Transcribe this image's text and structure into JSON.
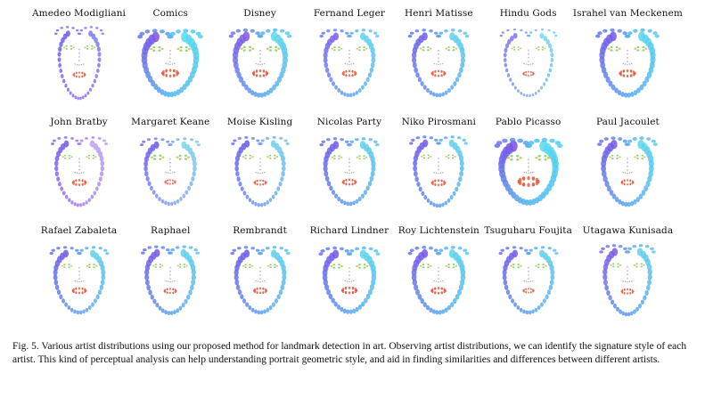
{
  "figure": {
    "artists": [
      {
        "name": "Amedeo Modigliani",
        "style": {
          "w": 0.82,
          "h": 1.1,
          "sz": 0.8,
          "eyeSz": 1.0,
          "mouth": 0.9,
          "cols": [
            "#6a5cf0",
            "#8f6df2",
            "#7c7ef0"
          ],
          "rot": 0
        }
      },
      {
        "name": "Comics",
        "style": {
          "w": 1.06,
          "h": 0.98,
          "sz": 1.35,
          "eyeSz": 1.2,
          "mouth": 1.2,
          "cols": [
            "#7a52e8",
            "#4fb6ee",
            "#58d8ee"
          ],
          "rot": 0
        }
      },
      {
        "name": "Disney",
        "style": {
          "w": 1.02,
          "h": 1.0,
          "sz": 1.25,
          "eyeSz": 1.2,
          "mouth": 1.1,
          "cols": [
            "#8055ea",
            "#5aa6ef",
            "#5fd6ec"
          ],
          "rot": 0
        }
      },
      {
        "name": "Fernand Leger",
        "style": {
          "w": 0.98,
          "h": 1.0,
          "sz": 1.0,
          "eyeSz": 1.0,
          "mouth": 1.0,
          "cols": [
            "#7b5cee",
            "#5fa4ef",
            "#60d3ea"
          ],
          "rot": 0
        }
      },
      {
        "name": "Henri Matisse",
        "style": {
          "w": 1.0,
          "h": 1.0,
          "sz": 1.05,
          "eyeSz": 1.05,
          "mouth": 1.0,
          "cols": [
            "#6f5de9",
            "#5b9ff0",
            "#5fd2ea"
          ],
          "rot": 0
        }
      },
      {
        "name": "Hindu Gods",
        "style": {
          "w": 0.96,
          "h": 1.02,
          "sz": 0.75,
          "eyeSz": 0.9,
          "mouth": 0.8,
          "cols": [
            "#7f6df0",
            "#7aa8f0",
            "#72d8ec"
          ],
          "rot": 0
        }
      },
      {
        "name": "Israhel van Meckenem",
        "style": {
          "w": 1.04,
          "h": 1.0,
          "sz": 1.25,
          "eyeSz": 1.15,
          "mouth": 1.15,
          "cols": [
            "#7455ea",
            "#54a8ef",
            "#58d4ec"
          ],
          "rot": 0
        }
      },
      {
        "name": "John Bratby",
        "style": {
          "w": 0.94,
          "h": 1.04,
          "sz": 0.9,
          "eyeSz": 0.95,
          "mouth": 1.0,
          "cols": [
            "#7258ea",
            "#a57bf0",
            "#b9a2f4"
          ],
          "rot": 0
        }
      },
      {
        "name": "Margaret Keane",
        "style": {
          "w": 1.0,
          "h": 1.0,
          "sz": 0.95,
          "eyeSz": 1.2,
          "mouth": 0.8,
          "cols": [
            "#6a58ea",
            "#7fa2f0",
            "#80d3ea"
          ],
          "rot": 0
        }
      },
      {
        "name": "Moise Kisling",
        "style": {
          "w": 0.96,
          "h": 1.04,
          "sz": 0.95,
          "eyeSz": 1.0,
          "mouth": 0.9,
          "cols": [
            "#6c58ea",
            "#6b9bf0",
            "#6fd0ea"
          ],
          "rot": 0
        }
      },
      {
        "name": "Nicolas Party",
        "style": {
          "w": 0.98,
          "h": 1.0,
          "sz": 1.05,
          "eyeSz": 1.0,
          "mouth": 1.0,
          "cols": [
            "#7058ea",
            "#5c9ff0",
            "#5fd0ea"
          ],
          "rot": 0
        }
      },
      {
        "name": "Niko Pirosmani",
        "style": {
          "w": 0.96,
          "h": 1.06,
          "sz": 1.0,
          "eyeSz": 0.95,
          "mouth": 1.0,
          "cols": [
            "#6e57ea",
            "#5c9ef0",
            "#5fd1ea"
          ],
          "rot": 0
        }
      },
      {
        "name": "Pablo Picasso",
        "style": {
          "w": 1.1,
          "h": 0.96,
          "sz": 1.5,
          "eyeSz": 1.3,
          "mouth": 1.5,
          "cols": [
            "#7a4fe6",
            "#4fb5ee",
            "#58d9ee"
          ],
          "rot": 0
        }
      },
      {
        "name": "Paul Jacoulet",
        "style": {
          "w": 0.98,
          "h": 1.02,
          "sz": 1.2,
          "eyeSz": 1.05,
          "mouth": 0.9,
          "cols": [
            "#7357ea",
            "#58a9ef",
            "#5bd6ec"
          ],
          "rot": 0
        }
      },
      {
        "name": "Rafael Zabaleta",
        "style": {
          "w": 0.98,
          "h": 1.0,
          "sz": 1.0,
          "eyeSz": 1.0,
          "mouth": 1.0,
          "cols": [
            "#6e58ea",
            "#5c9ff0",
            "#5fd1ea"
          ],
          "rot": 0
        }
      },
      {
        "name": "Raphael",
        "style": {
          "w": 0.96,
          "h": 1.02,
          "sz": 1.05,
          "eyeSz": 0.95,
          "mouth": 0.9,
          "cols": [
            "#7158ea",
            "#5b9ff0",
            "#5fd1ea"
          ],
          "rot": 0
        }
      },
      {
        "name": "Rembrandt",
        "style": {
          "w": 0.98,
          "h": 1.0,
          "sz": 1.05,
          "eyeSz": 0.95,
          "mouth": 0.95,
          "cols": [
            "#6f58ea",
            "#5c9ff0",
            "#5fd1ea"
          ],
          "rot": 0
        }
      },
      {
        "name": "Richard Lindner",
        "style": {
          "w": 1.0,
          "h": 0.98,
          "sz": 1.15,
          "eyeSz": 1.1,
          "mouth": 1.1,
          "cols": [
            "#7556ea",
            "#58a6ef",
            "#5bd5ec"
          ],
          "rot": 0
        }
      },
      {
        "name": "Roy Lichtenstein",
        "style": {
          "w": 1.0,
          "h": 1.0,
          "sz": 1.15,
          "eyeSz": 1.05,
          "mouth": 1.05,
          "cols": [
            "#7456ea",
            "#59a5ef",
            "#5cd4ec"
          ],
          "rot": 0
        }
      },
      {
        "name": "Tsuguharu Foujita",
        "style": {
          "w": 0.98,
          "h": 1.0,
          "sz": 1.0,
          "eyeSz": 1.05,
          "mouth": 0.8,
          "cols": [
            "#6f58ea",
            "#5ba0f0",
            "#5fd2ea"
          ],
          "rot": 0
        }
      },
      {
        "name": "Utagawa Kunisada",
        "style": {
          "w": 0.92,
          "h": 1.06,
          "sz": 1.05,
          "eyeSz": 1.0,
          "mouth": 0.9,
          "cols": [
            "#7a58ea",
            "#5c9ef0",
            "#5fd0ea"
          ],
          "rot": 0
        }
      }
    ],
    "colors": {
      "eyes": "#e8b84a",
      "eyes_inner": "#7fd46a",
      "nose": "#9a8fa0",
      "mouth": "#e04a2a",
      "mouth_alt": "#e8604a"
    }
  },
  "caption": {
    "label": "Fig. 5.",
    "text": "Various artist distributions using our proposed method for landmark detection in art. Observing artist distributions, we can identify the signature style of each artist. This kind of perceptual analysis can help understanding portrait geometric style, and aid in finding similarities and differences between different artists."
  }
}
